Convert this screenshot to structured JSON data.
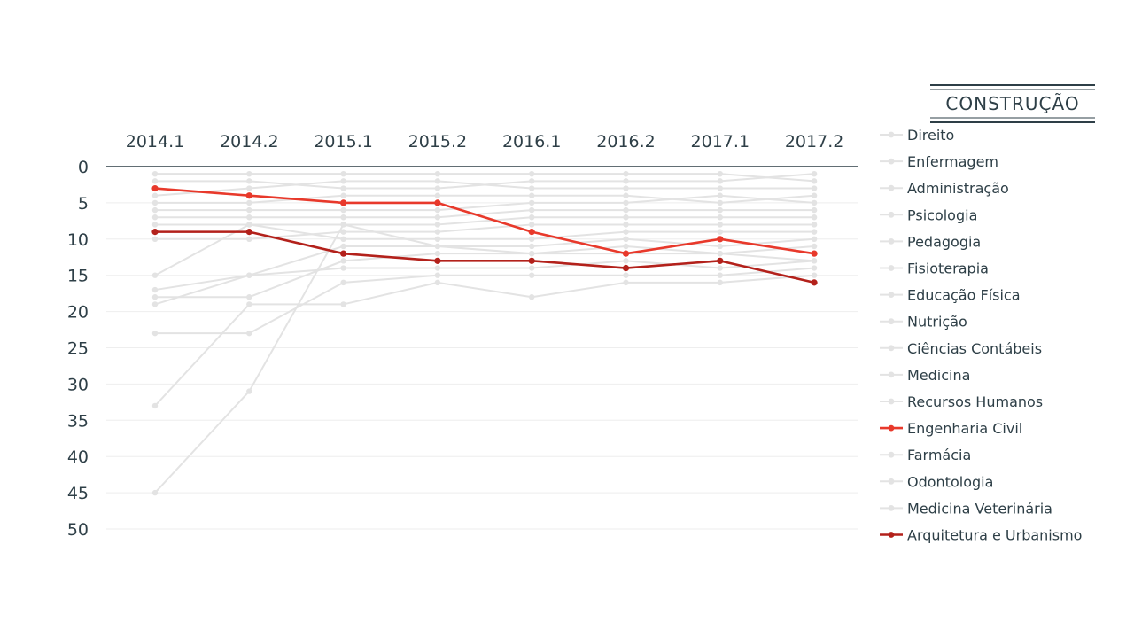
{
  "chart_data": {
    "type": "line",
    "title": "CONSTRUÇÃO",
    "x": [
      "2014.1",
      "2014.2",
      "2015.1",
      "2015.2",
      "2016.1",
      "2016.2",
      "2017.1",
      "2017.2"
    ],
    "yticks": [
      0,
      5,
      10,
      15,
      20,
      25,
      30,
      35,
      40,
      45,
      50
    ],
    "ylim": [
      0,
      50
    ],
    "y_inverted": true,
    "grid": true,
    "legend_position": "right",
    "colors": {
      "muted": "#e3e3e3",
      "highlight_1": "#e8392b",
      "highlight_2": "#b3211b",
      "axis": "#2e3f47",
      "grid": "#eeeeee"
    },
    "series": [
      {
        "name": "Direito",
        "values": [
          1,
          1,
          1,
          1,
          1,
          1,
          1,
          2
        ],
        "highlight": false
      },
      {
        "name": "Enfermagem",
        "values": [
          2,
          2,
          3,
          3,
          2,
          2,
          2,
          1
        ],
        "highlight": false
      },
      {
        "name": "Administração",
        "values": [
          4,
          3,
          2,
          2,
          3,
          3,
          3,
          3
        ],
        "highlight": false
      },
      {
        "name": "Psicologia",
        "values": [
          5,
          5,
          4,
          4,
          4,
          4,
          5,
          4
        ],
        "highlight": false
      },
      {
        "name": "Pedagogia",
        "values": [
          6,
          6,
          6,
          6,
          5,
          5,
          4,
          5
        ],
        "highlight": false
      },
      {
        "name": "Fisioterapia",
        "values": [
          7,
          7,
          7,
          7,
          6,
          6,
          6,
          6
        ],
        "highlight": false
      },
      {
        "name": "Educação Física",
        "values": [
          8,
          8,
          8,
          8,
          7,
          7,
          7,
          7
        ],
        "highlight": false
      },
      {
        "name": "Nutrição",
        "values": [
          10,
          10,
          9,
          9,
          8,
          8,
          8,
          8
        ],
        "highlight": false
      },
      {
        "name": "Ciências Contábeis",
        "values": [
          15,
          8,
          10,
          10,
          10,
          9,
          9,
          9
        ],
        "highlight": false
      },
      {
        "name": "Medicina",
        "values": [
          17,
          15,
          11,
          11,
          11,
          10,
          11,
          10
        ],
        "highlight": false
      },
      {
        "name": "Recursos Humanos",
        "values": [
          18,
          18,
          13,
          12,
          12,
          11,
          12,
          11
        ],
        "highlight": false
      },
      {
        "name": "Engenharia Civil",
        "values": [
          3,
          4,
          5,
          5,
          9,
          12,
          10,
          12
        ],
        "highlight": true,
        "color": "#e8392b"
      },
      {
        "name": "Farmácia",
        "values": [
          19,
          15,
          14,
          14,
          14,
          13,
          14,
          13
        ],
        "highlight": false
      },
      {
        "name": "Odontologia",
        "values": [
          23,
          23,
          16,
          15,
          15,
          15,
          15,
          14
        ],
        "highlight": false
      },
      {
        "name": "Medicina Veterinária",
        "values": [
          33,
          19,
          19,
          16,
          18,
          16,
          16,
          15
        ],
        "highlight": false
      },
      {
        "name": "Arquitetura e Urbanismo",
        "values": [
          9,
          9,
          12,
          13,
          13,
          14,
          13,
          16
        ],
        "highlight": true,
        "color": "#b3211b"
      },
      {
        "name": "",
        "values": [
          45,
          31,
          8,
          11,
          12,
          12,
          12,
          13
        ],
        "highlight": false,
        "in_legend": false
      }
    ]
  }
}
